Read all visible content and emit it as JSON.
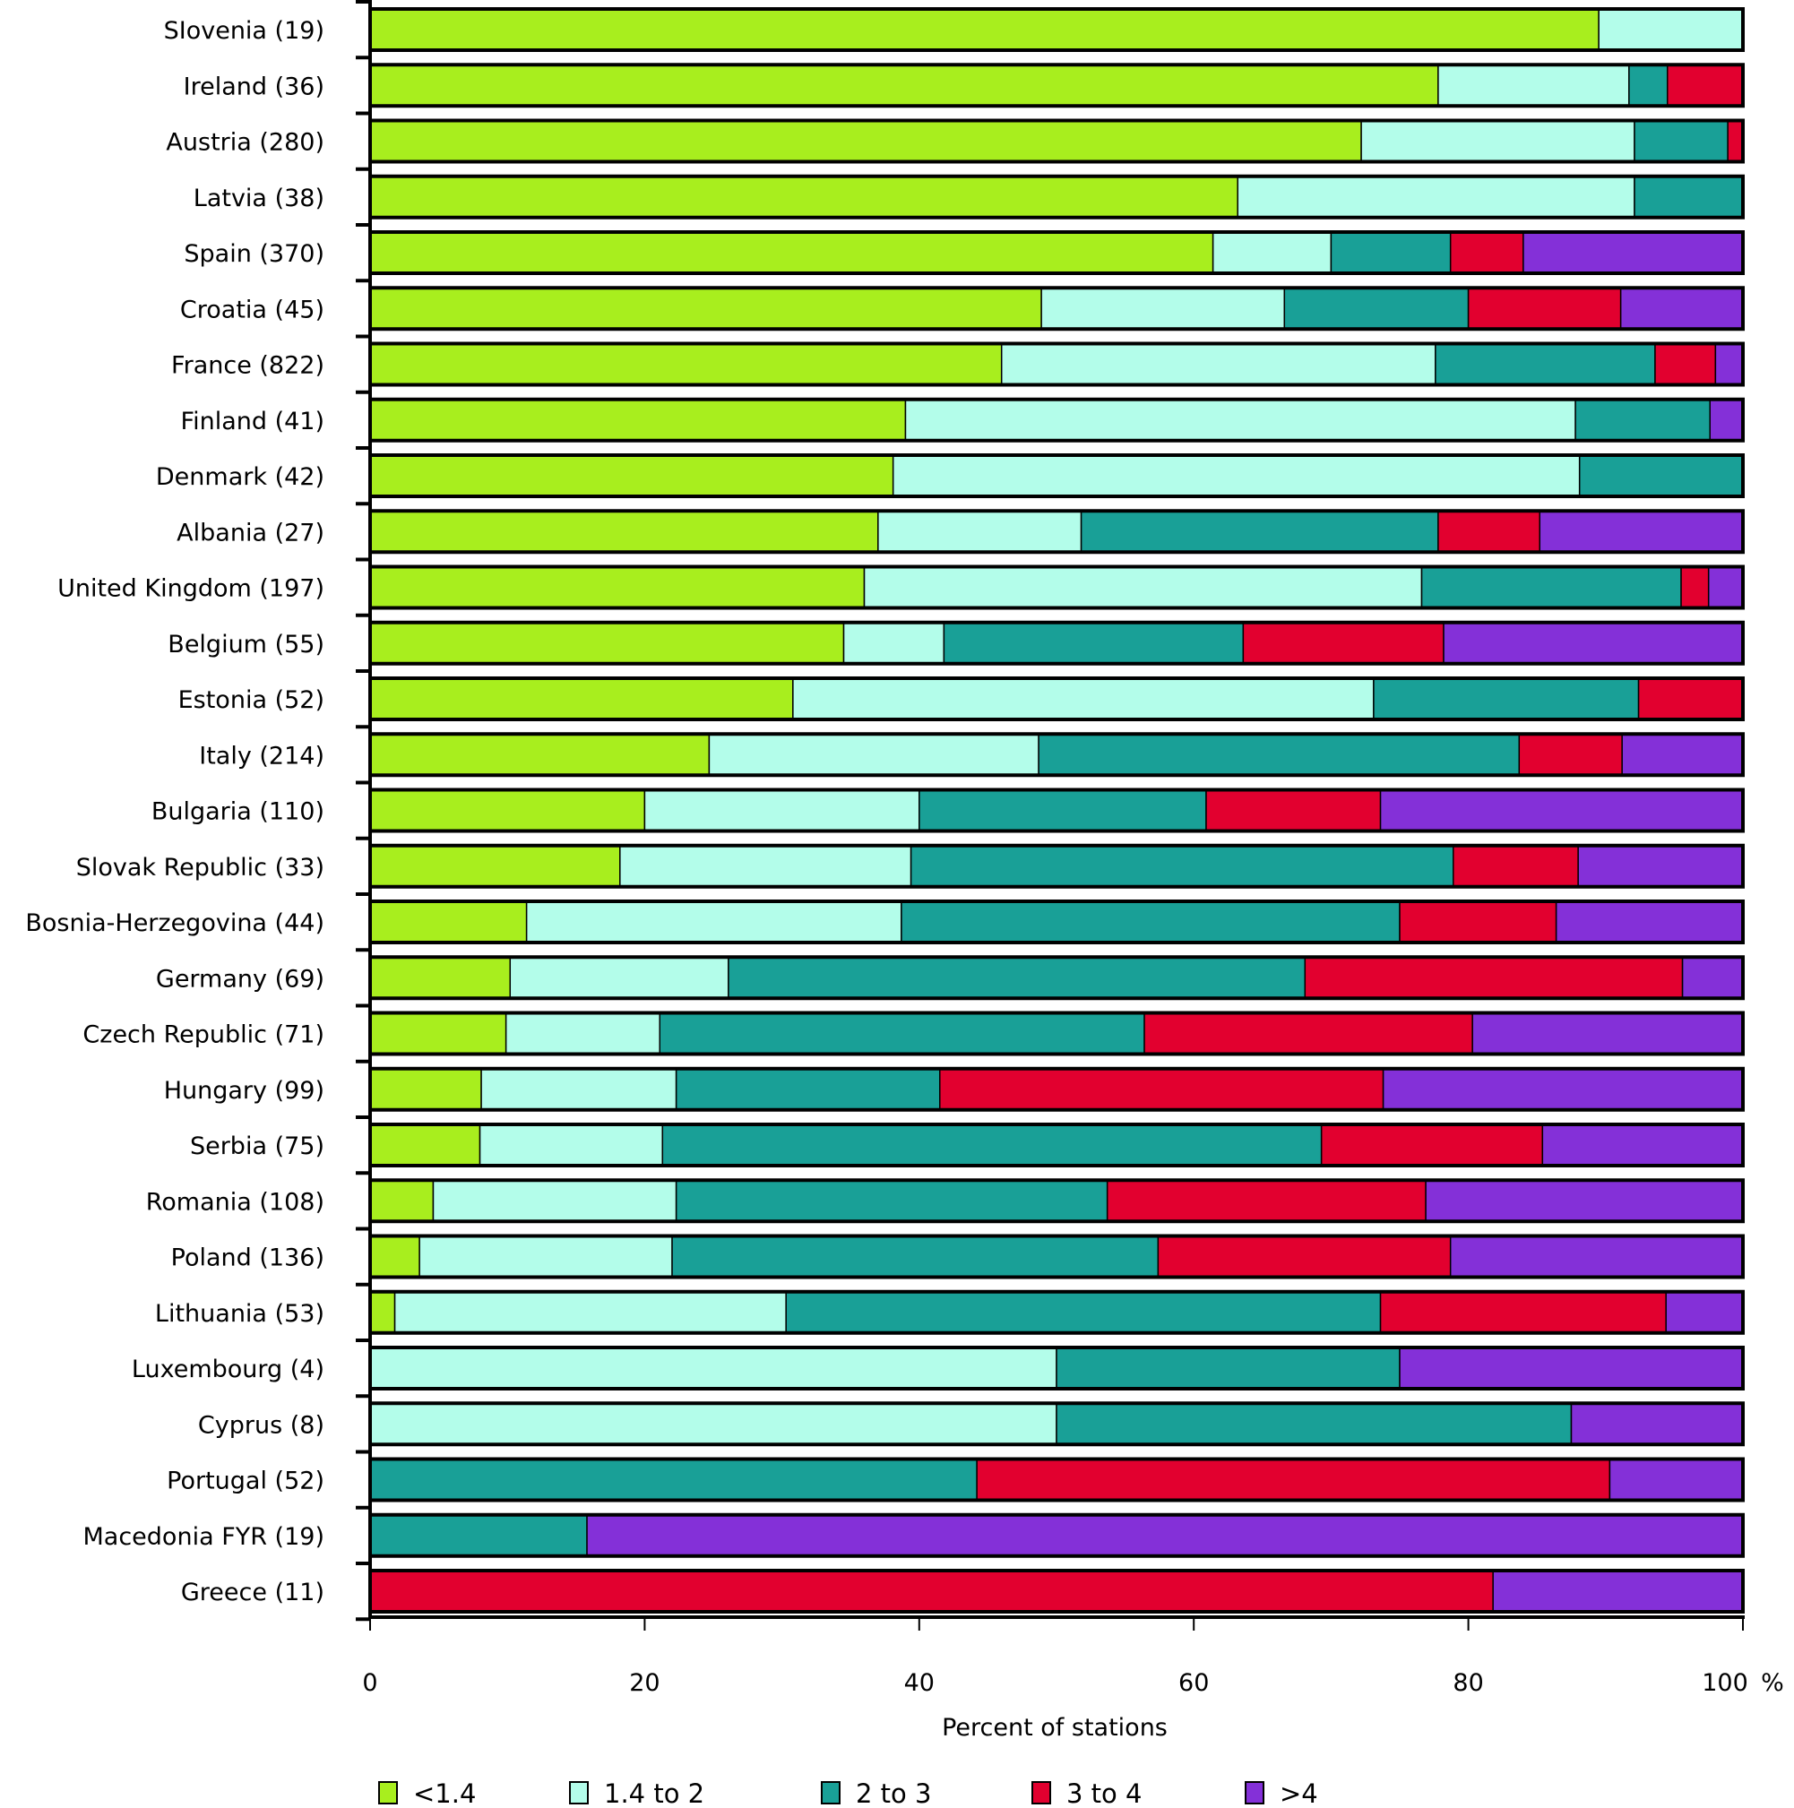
{
  "chart_data": {
    "type": "bar",
    "orientation": "horizontal",
    "stacked": true,
    "title": "",
    "xlabel": "Percent of stations",
    "xunit": "%",
    "ylabel": "",
    "xlim": [
      0,
      100
    ],
    "xticks": [
      "0",
      "20",
      "40",
      "60",
      "80",
      "100"
    ],
    "grid": false,
    "legend_position": "bottom",
    "categories": [
      "SIovenia (19)",
      "Ireland (36)",
      "Austria (280)",
      "Latvia (38)",
      "Spain (370)",
      "Croatia (45)",
      "France (822)",
      "Finland (41)",
      "Denmark (42)",
      "Albania (27)",
      "United Kingdom (197)",
      "Belgium (55)",
      "Estonia (52)",
      "Italy (214)",
      "Bulgaria (110)",
      "Slovak Republic (33)",
      "Bosnia-Herzegovina (44)",
      "Germany (69)",
      "Czech Republic (71)",
      "Hungary (99)",
      "Serbia (75)",
      "Romania (108)",
      "Poland (136)",
      "Lithuania (53)",
      "Luxembourg (4)",
      "Cyprus (8)",
      "Portugal (52)",
      "Macedonia FYR (19)",
      "Greece (11)"
    ],
    "series": [
      {
        "name": "<1.4",
        "color": "#a8ee1e",
        "values": [
          89.5,
          77.8,
          72.2,
          63.2,
          61.4,
          48.9,
          46.0,
          39.0,
          38.1,
          37.0,
          36.0,
          34.5,
          30.8,
          24.7,
          20.0,
          18.2,
          11.4,
          10.2,
          9.9,
          8.1,
          8.0,
          4.6,
          3.6,
          1.8,
          0,
          0,
          0,
          0,
          0
        ]
      },
      {
        "name": "1.4 to 2",
        "color": "#b3fdea",
        "values": [
          10.5,
          13.9,
          19.9,
          28.9,
          8.6,
          17.7,
          31.6,
          48.8,
          50.0,
          14.8,
          40.6,
          7.3,
          42.3,
          24.0,
          20.0,
          21.2,
          27.3,
          15.9,
          11.2,
          14.2,
          13.3,
          17.7,
          18.4,
          28.5,
          50.0,
          50.0,
          0,
          0,
          0
        ]
      },
      {
        "name": "2 to 3",
        "color": "#19a097",
        "values": [
          0,
          2.8,
          6.8,
          7.9,
          8.7,
          13.4,
          16.0,
          9.8,
          11.9,
          26.0,
          18.9,
          21.8,
          19.3,
          35.0,
          20.9,
          39.5,
          36.3,
          42.0,
          35.3,
          19.2,
          48.0,
          31.4,
          35.4,
          43.3,
          25.0,
          37.5,
          44.2,
          15.8,
          0
        ]
      },
      {
        "name": "3 to 4",
        "color": "#e2002f",
        "values": [
          0,
          5.5,
          1.1,
          0,
          5.3,
          11.1,
          4.4,
          0,
          0,
          7.4,
          2.0,
          14.6,
          7.6,
          7.5,
          12.7,
          9.1,
          11.4,
          27.5,
          23.9,
          32.3,
          16.1,
          23.2,
          21.3,
          20.8,
          0,
          0,
          46.1,
          0,
          81.8
        ]
      },
      {
        "name": ">4",
        "color": "#8430d8",
        "values": [
          0,
          0,
          0,
          0,
          16.0,
          8.9,
          2.0,
          2.4,
          0,
          14.8,
          2.5,
          21.8,
          0,
          8.8,
          26.4,
          12.0,
          13.6,
          4.4,
          19.7,
          26.2,
          14.6,
          23.1,
          21.3,
          5.6,
          25.0,
          12.5,
          9.7,
          84.2,
          18.2
        ]
      }
    ]
  }
}
